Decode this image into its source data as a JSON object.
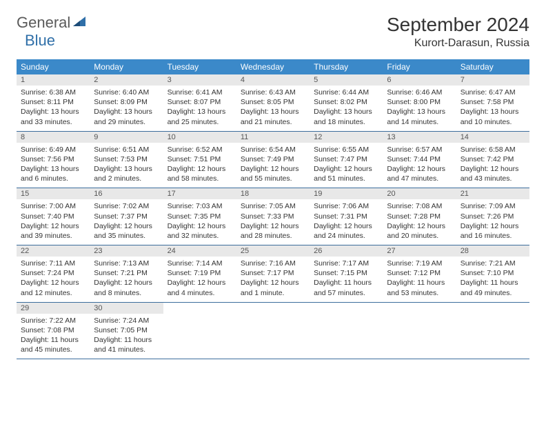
{
  "brand": {
    "text1": "General",
    "text2": "Blue"
  },
  "title": "September 2024",
  "location": "Kurort-Darasun, Russia",
  "colors": {
    "header_bg": "#3b89c9",
    "header_text": "#ffffff",
    "daynum_bg": "#e8e8e8",
    "border": "#3b6d9c",
    "brand_gray": "#5a5a5a",
    "brand_blue": "#2f6fa8"
  },
  "columns": [
    "Sunday",
    "Monday",
    "Tuesday",
    "Wednesday",
    "Thursday",
    "Friday",
    "Saturday"
  ],
  "weeks": [
    [
      {
        "n": "1",
        "sr": "6:38 AM",
        "ss": "8:11 PM",
        "dh": "13",
        "dm": "33"
      },
      {
        "n": "2",
        "sr": "6:40 AM",
        "ss": "8:09 PM",
        "dh": "13",
        "dm": "29"
      },
      {
        "n": "3",
        "sr": "6:41 AM",
        "ss": "8:07 PM",
        "dh": "13",
        "dm": "25"
      },
      {
        "n": "4",
        "sr": "6:43 AM",
        "ss": "8:05 PM",
        "dh": "13",
        "dm": "21"
      },
      {
        "n": "5",
        "sr": "6:44 AM",
        "ss": "8:02 PM",
        "dh": "13",
        "dm": "18"
      },
      {
        "n": "6",
        "sr": "6:46 AM",
        "ss": "8:00 PM",
        "dh": "13",
        "dm": "14"
      },
      {
        "n": "7",
        "sr": "6:47 AM",
        "ss": "7:58 PM",
        "dh": "13",
        "dm": "10"
      }
    ],
    [
      {
        "n": "8",
        "sr": "6:49 AM",
        "ss": "7:56 PM",
        "dh": "13",
        "dm": "6"
      },
      {
        "n": "9",
        "sr": "6:51 AM",
        "ss": "7:53 PM",
        "dh": "13",
        "dm": "2"
      },
      {
        "n": "10",
        "sr": "6:52 AM",
        "ss": "7:51 PM",
        "dh": "12",
        "dm": "58"
      },
      {
        "n": "11",
        "sr": "6:54 AM",
        "ss": "7:49 PM",
        "dh": "12",
        "dm": "55"
      },
      {
        "n": "12",
        "sr": "6:55 AM",
        "ss": "7:47 PM",
        "dh": "12",
        "dm": "51"
      },
      {
        "n": "13",
        "sr": "6:57 AM",
        "ss": "7:44 PM",
        "dh": "12",
        "dm": "47"
      },
      {
        "n": "14",
        "sr": "6:58 AM",
        "ss": "7:42 PM",
        "dh": "12",
        "dm": "43"
      }
    ],
    [
      {
        "n": "15",
        "sr": "7:00 AM",
        "ss": "7:40 PM",
        "dh": "12",
        "dm": "39"
      },
      {
        "n": "16",
        "sr": "7:02 AM",
        "ss": "7:37 PM",
        "dh": "12",
        "dm": "35"
      },
      {
        "n": "17",
        "sr": "7:03 AM",
        "ss": "7:35 PM",
        "dh": "12",
        "dm": "32"
      },
      {
        "n": "18",
        "sr": "7:05 AM",
        "ss": "7:33 PM",
        "dh": "12",
        "dm": "28"
      },
      {
        "n": "19",
        "sr": "7:06 AM",
        "ss": "7:31 PM",
        "dh": "12",
        "dm": "24"
      },
      {
        "n": "20",
        "sr": "7:08 AM",
        "ss": "7:28 PM",
        "dh": "12",
        "dm": "20"
      },
      {
        "n": "21",
        "sr": "7:09 AM",
        "ss": "7:26 PM",
        "dh": "12",
        "dm": "16"
      }
    ],
    [
      {
        "n": "22",
        "sr": "7:11 AM",
        "ss": "7:24 PM",
        "dh": "12",
        "dm": "12"
      },
      {
        "n": "23",
        "sr": "7:13 AM",
        "ss": "7:21 PM",
        "dh": "12",
        "dm": "8"
      },
      {
        "n": "24",
        "sr": "7:14 AM",
        "ss": "7:19 PM",
        "dh": "12",
        "dm": "4"
      },
      {
        "n": "25",
        "sr": "7:16 AM",
        "ss": "7:17 PM",
        "dh": "12",
        "dm": "1"
      },
      {
        "n": "26",
        "sr": "7:17 AM",
        "ss": "7:15 PM",
        "dh": "11",
        "dm": "57"
      },
      {
        "n": "27",
        "sr": "7:19 AM",
        "ss": "7:12 PM",
        "dh": "11",
        "dm": "53"
      },
      {
        "n": "28",
        "sr": "7:21 AM",
        "ss": "7:10 PM",
        "dh": "11",
        "dm": "49"
      }
    ],
    [
      {
        "n": "29",
        "sr": "7:22 AM",
        "ss": "7:08 PM",
        "dh": "11",
        "dm": "45"
      },
      {
        "n": "30",
        "sr": "7:24 AM",
        "ss": "7:05 PM",
        "dh": "11",
        "dm": "41"
      },
      null,
      null,
      null,
      null,
      null
    ]
  ],
  "labels": {
    "sunrise": "Sunrise:",
    "sunset": "Sunset:",
    "daylight_prefix": "Daylight:",
    "hours_word": "hours",
    "and_word": "and",
    "minutes_word": "minutes.",
    "minute_word": "minute."
  }
}
